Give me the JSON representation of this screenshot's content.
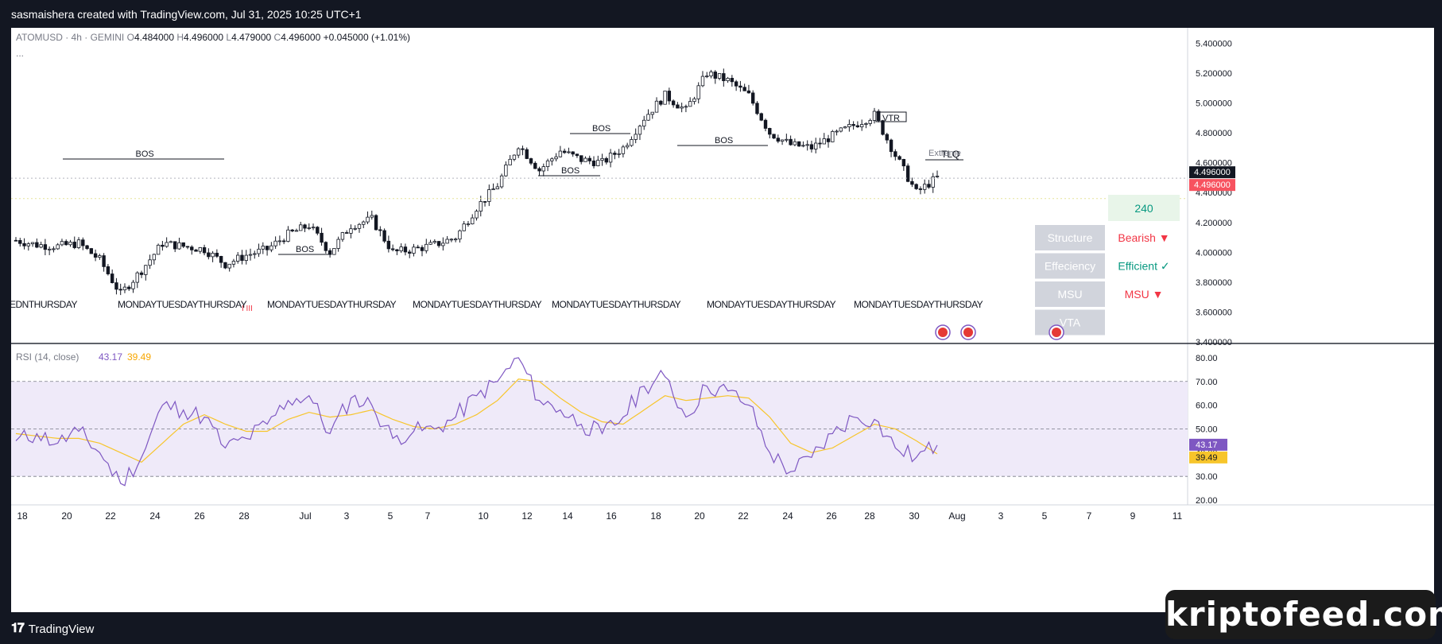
{
  "header": {
    "credit": "sasmaishera created with TradingView.com, Jul 31, 2025 10:25 UTC+1"
  },
  "legend": {
    "symbol": "ATOMUSD · 4h · GEMINI",
    "o_label": "O",
    "o": "4.484000",
    "h_label": "H",
    "h": "4.496000",
    "l_label": "L",
    "l": "4.479000",
    "c_label": "C",
    "c": "4.496000",
    "change": "+0.045000 (+1.01%)",
    "more": "..."
  },
  "price_axis": {
    "ticks": [
      "5.400000",
      "5.200000",
      "5.000000",
      "4.800000",
      "4.600000",
      "4.400000",
      "4.200000",
      "4.000000",
      "3.800000",
      "3.600000",
      "3.400000"
    ],
    "last_price": "4.496000",
    "last_price_red": "4.496000"
  },
  "rsi": {
    "title": "RSI (14, close)",
    "value": "43.17",
    "ma_value": "39.49",
    "ticks": [
      "80.00",
      "70.00",
      "60.00",
      "50.00",
      "40.00",
      "30.00",
      "20.00"
    ],
    "colors": {
      "rsi": "#7e57c2",
      "ma": "#f7c52b",
      "band": "#efeaf9"
    }
  },
  "time_axis": {
    "labels": [
      "18",
      "20",
      "22",
      "24",
      "26",
      "28",
      "Jul",
      "3",
      "5",
      "7",
      "10",
      "12",
      "14",
      "16",
      "18",
      "20",
      "22",
      "24",
      "26",
      "28",
      "30",
      "Aug",
      "3",
      "5",
      "7",
      "9",
      "11"
    ]
  },
  "annotations": {
    "bos": "BOS",
    "vtr": "VTR",
    "extreme": "Extreme",
    "tlq": "TLQ",
    "day_labels": [
      "EDNTHURSDAY",
      "MONDAYTUESDAYTHURSDAY",
      "MONDAYTUESDAYTHURSDAY",
      "MONDAYTUESDAYTHURSDAY",
      "MONDAYTUESDAYTHURSDAY",
      "MONDAYTUESDAYTHURSDAY",
      "MONDAYTUESDAYTHURSDAY"
    ],
    "red_ticks": "I III"
  },
  "table": {
    "number": "240",
    "rows": [
      {
        "label": "Structure",
        "value": "Bearish ▼",
        "color": "#f23645"
      },
      {
        "label": "Effeciency",
        "value": "Efficient ✓",
        "color": "#089981"
      },
      {
        "label": "MSU",
        "value": "MSU ▼",
        "color": "#f23645"
      },
      {
        "label": "VTA",
        "value": "",
        "color": "#f23645"
      }
    ]
  },
  "footer": {
    "brand": "TradingView",
    "watermark": "kriptofeed.com"
  },
  "chart_data": [
    {
      "type": "candlestick",
      "title": "ATOMUSD · 4h · GEMINI",
      "ylim": [
        3.4,
        5.45
      ],
      "x": [
        "Jun 17",
        "Jun 18",
        "Jun 19",
        "Jun 20",
        "Jun 21",
        "Jun 22",
        "Jun 23",
        "Jun 24",
        "Jun 25",
        "Jun 26",
        "Jun 27",
        "Jun 28",
        "Jun 29",
        "Jun 30",
        "Jul 1",
        "Jul 2",
        "Jul 3",
        "Jul 4",
        "Jul 5",
        "Jul 6",
        "Jul 7",
        "Jul 8",
        "Jul 9",
        "Jul 10",
        "Jul 11",
        "Jul 12",
        "Jul 13",
        "Jul 14",
        "Jul 15",
        "Jul 16",
        "Jul 17",
        "Jul 18",
        "Jul 19",
        "Jul 20",
        "Jul 21",
        "Jul 22",
        "Jul 23",
        "Jul 24",
        "Jul 25",
        "Jul 26",
        "Jul 27",
        "Jul 28",
        "Jul 29",
        "Jul 30",
        "Jul 31"
      ],
      "close": [
        4.08,
        4.05,
        4.04,
        4.06,
        3.95,
        3.72,
        3.88,
        4.06,
        4.04,
        4.02,
        3.92,
        3.98,
        4.02,
        4.12,
        4.18,
        4.0,
        4.18,
        4.22,
        4.0,
        4.02,
        4.05,
        4.1,
        4.3,
        4.45,
        4.72,
        4.55,
        4.68,
        4.62,
        4.6,
        4.7,
        4.9,
        5.05,
        4.95,
        5.2,
        5.15,
        5.05,
        4.8,
        4.72,
        4.7,
        4.78,
        4.85,
        4.92,
        4.65,
        4.4,
        4.5
      ],
      "last": 4.496
    },
    {
      "type": "line",
      "title": "RSI (14, close)",
      "ylim": [
        18,
        85
      ],
      "series": [
        {
          "name": "RSI",
          "values": [
            45,
            48,
            44,
            49,
            40,
            27,
            38,
            60,
            58,
            55,
            42,
            46,
            52,
            62,
            64,
            48,
            63,
            60,
            46,
            49,
            50,
            55,
            64,
            70,
            80,
            62,
            58,
            52,
            48,
            55,
            68,
            72,
            55,
            68,
            66,
            60,
            40,
            32,
            38,
            48,
            55,
            54,
            42,
            38,
            43.17
          ]
        },
        {
          "name": "MA",
          "values": [
            48,
            47,
            46,
            46,
            44,
            40,
            36,
            44,
            52,
            56,
            52,
            49,
            49,
            54,
            57,
            55,
            56,
            58,
            54,
            51,
            50,
            52,
            56,
            62,
            71,
            70,
            63,
            57,
            53,
            52,
            58,
            64,
            62,
            63,
            64,
            63,
            55,
            44,
            40,
            42,
            47,
            52,
            50,
            45,
            39.49
          ]
        }
      ]
    }
  ]
}
